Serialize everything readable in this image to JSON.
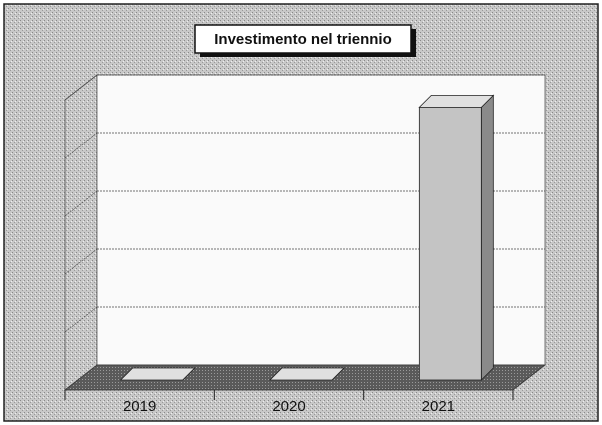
{
  "chart_data": {
    "type": "bar3d",
    "title": "Investimento nel triennio",
    "categories": [
      "2019",
      "2020",
      "2021"
    ],
    "values": [
      0,
      0,
      4.7
    ],
    "color": "#c4c4c4",
    "ylim": [
      0,
      5
    ],
    "yticks": [
      0,
      1,
      2,
      3,
      4,
      5
    ],
    "grid": true
  }
}
